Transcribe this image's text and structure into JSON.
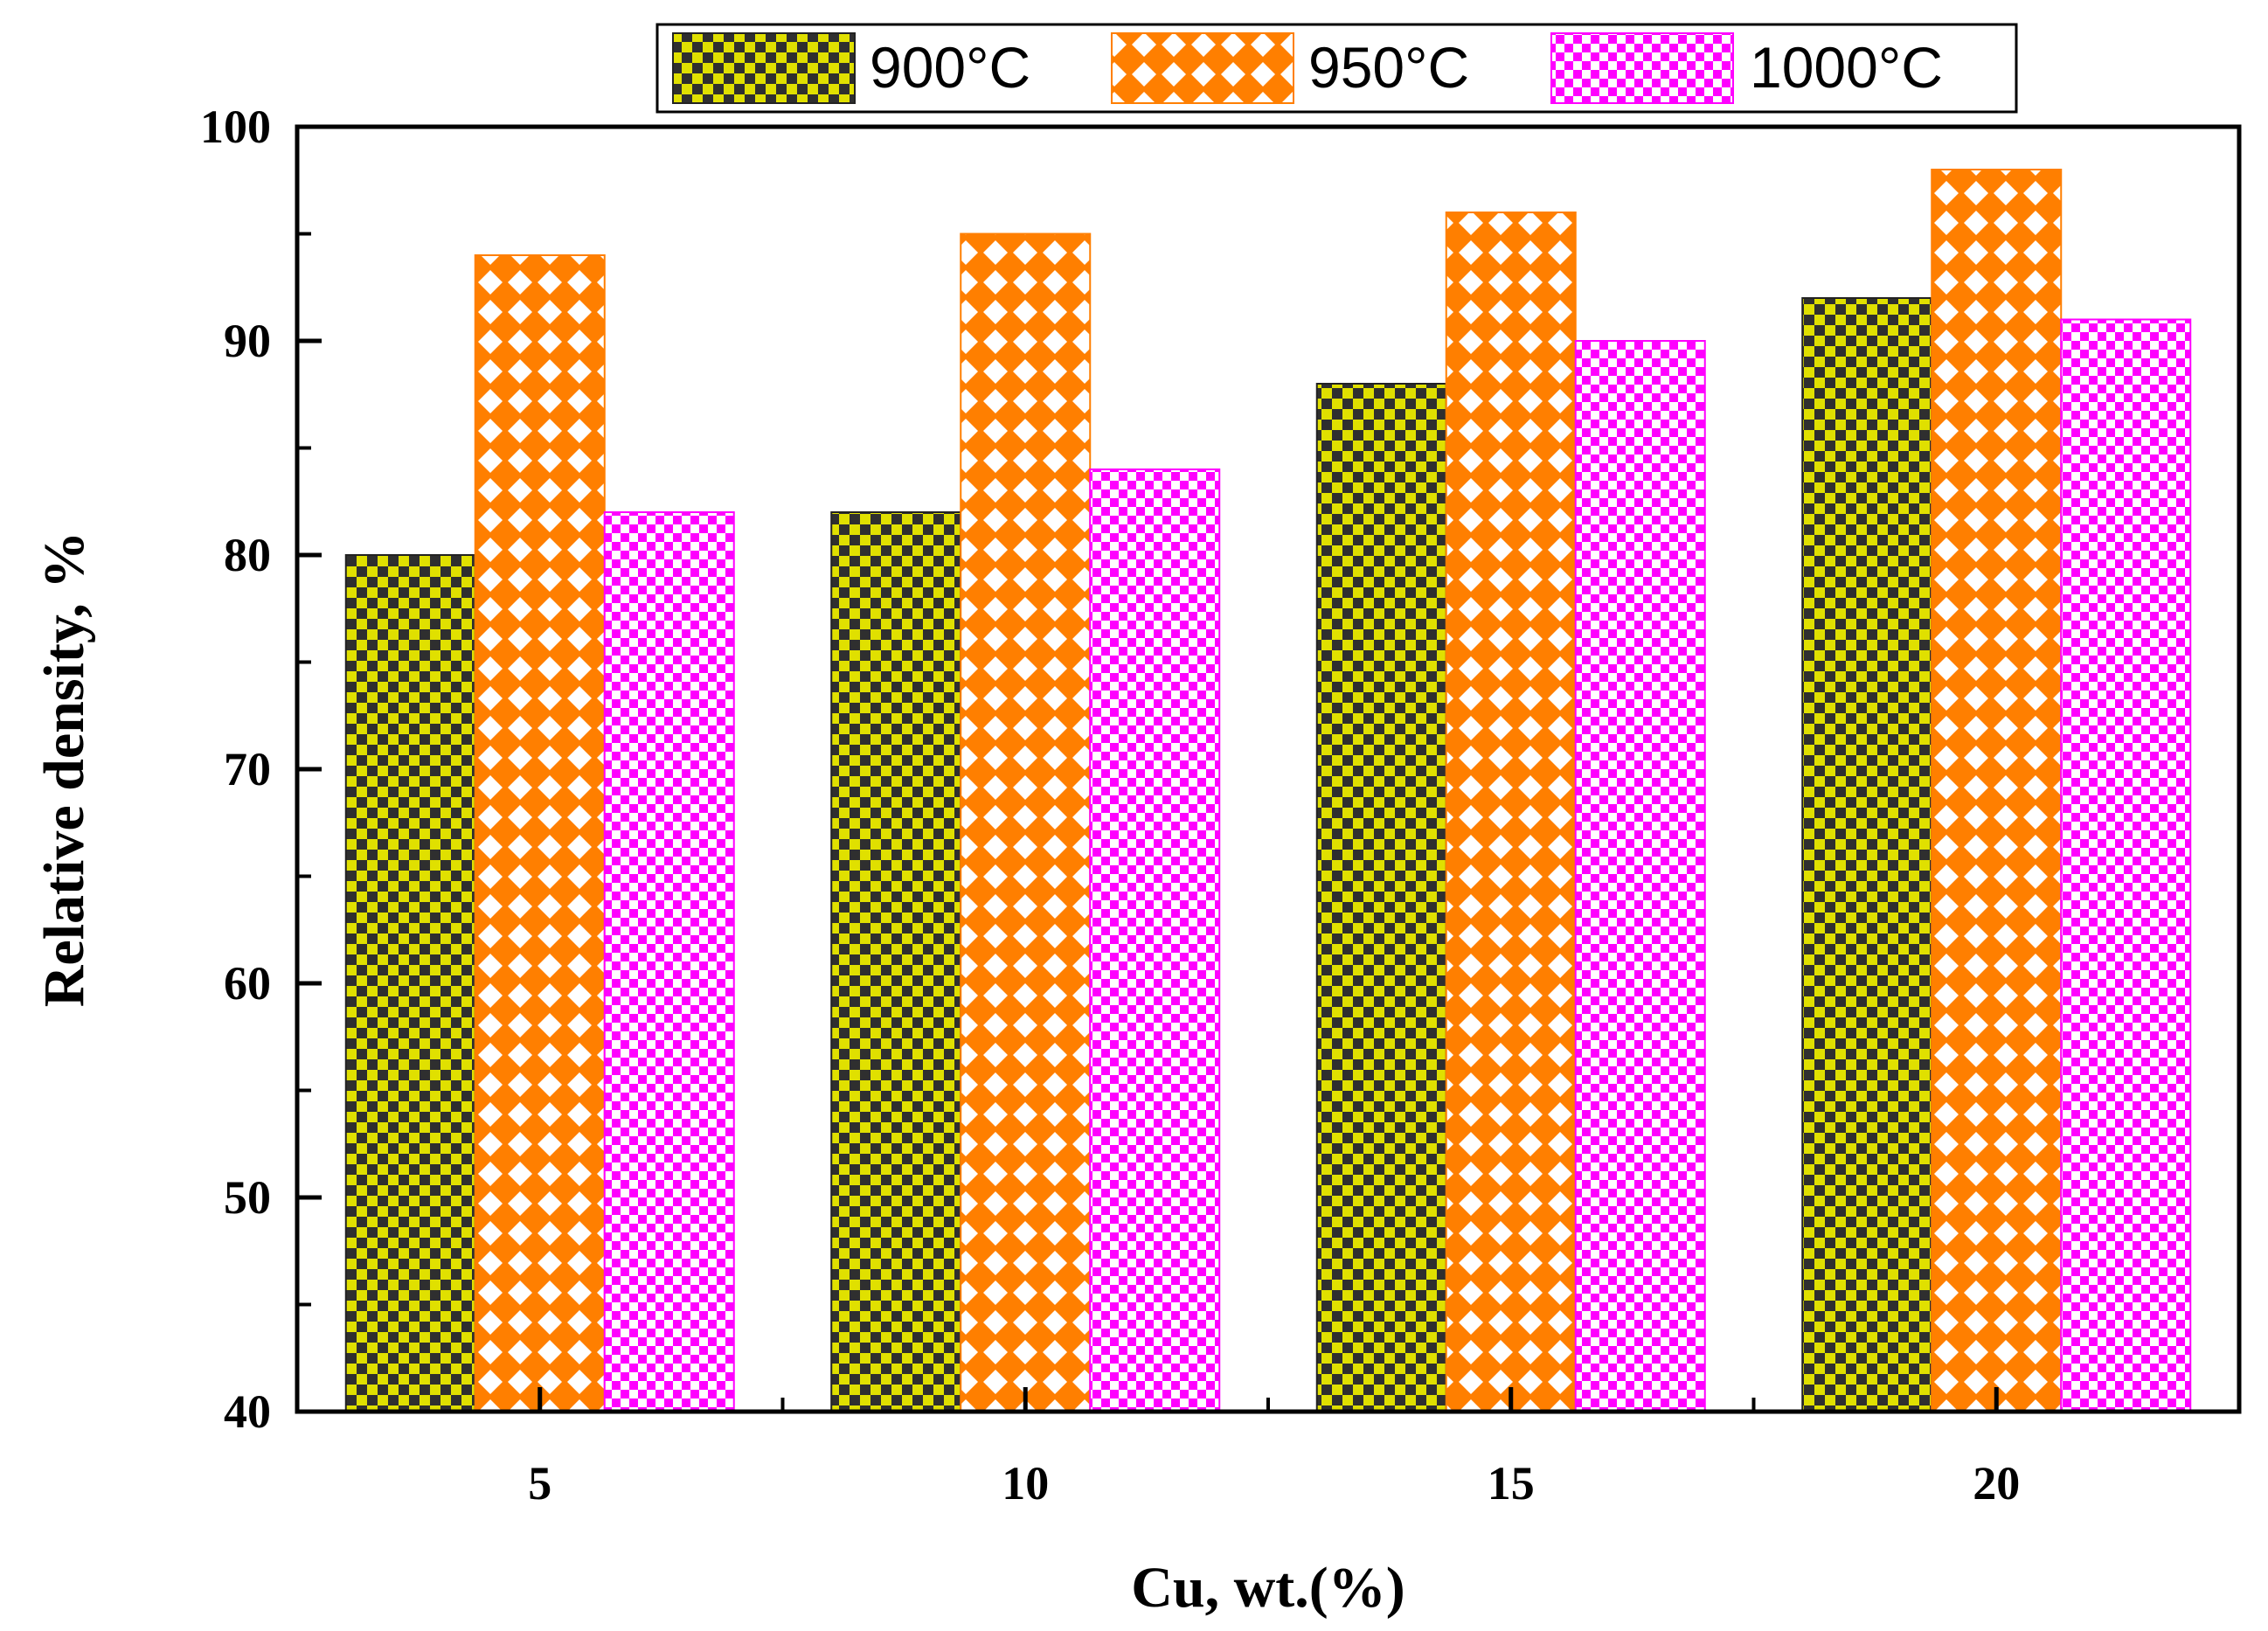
{
  "chart_data": {
    "type": "bar",
    "categories": [
      "5",
      "10",
      "15",
      "20"
    ],
    "series": [
      {
        "name": "900°C",
        "values": [
          80,
          82,
          88,
          92
        ],
        "color": "#d4d400",
        "pattern": "checker-olive"
      },
      {
        "name": "950°C",
        "values": [
          94,
          95,
          96,
          98
        ],
        "color": "#ff7f00",
        "pattern": "diamond-orange"
      },
      {
        "name": "1000°C",
        "values": [
          82,
          84,
          90,
          91
        ],
        "color": "#ff00ff",
        "pattern": "checker-magenta"
      }
    ],
    "xlabel": "Cu, wt.(%)",
    "ylabel": "Relative density, %",
    "ylim": [
      40,
      100
    ],
    "yticks": [
      40,
      50,
      60,
      70,
      80,
      90,
      100
    ],
    "legend_position": "top",
    "grid": false
  }
}
